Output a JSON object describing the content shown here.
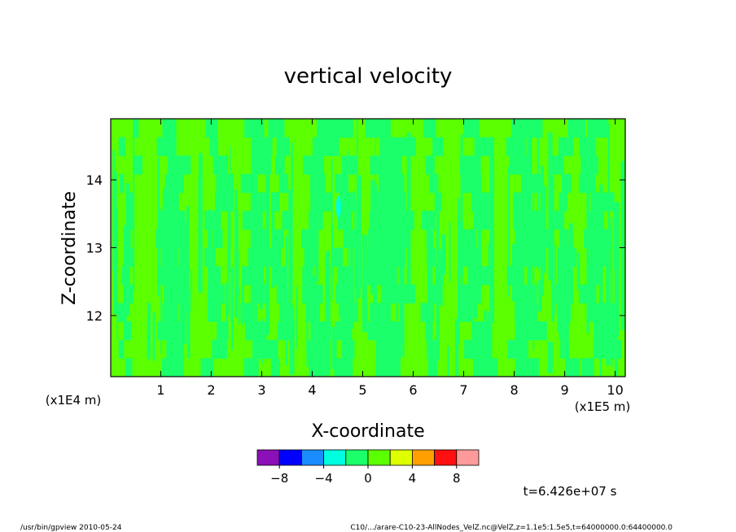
{
  "chart_data": {
    "type": "heatmap",
    "title": "vertical velocity",
    "xlabel": "X-coordinate",
    "ylabel": "Z-coordinate",
    "x_scale_label": "(x1E5 m)",
    "y_scale_label": "(x1E4 m)",
    "x_ticks": [
      1,
      2,
      3,
      4,
      5,
      6,
      7,
      8,
      9,
      10
    ],
    "y_ticks": [
      12,
      13,
      14
    ],
    "xlim": [
      0.01,
      10.2
    ],
    "ylim": [
      11.1,
      14.9
    ],
    "colorbar": {
      "colors": [
        "#8a10b8",
        "#0000ff",
        "#1a8cff",
        "#00ffe0",
        "#1aff6a",
        "#5cff00",
        "#ddff00",
        "#ffa000",
        "#ff1010",
        "#ff9a9a"
      ],
      "bounds": [
        -10,
        -8,
        -6,
        -4,
        -2,
        0,
        2,
        4,
        6,
        8,
        10
      ],
      "tick_values": [
        -8,
        -4,
        0,
        4,
        8
      ],
      "tick_labels": [
        "−8",
        "−4",
        "0",
        "4",
        "8"
      ]
    },
    "dominant_levels": {
      "green_band": "0 to 2",
      "mint_band": "-2 to 0",
      "cyan_spot": "-4 to -2 near x=4.5, z=13.6"
    },
    "time_label": "t=6.426e+07 s"
  },
  "footer": {
    "left": "/usr/bin/gpview   2010-05-24",
    "right": "C10/.../arare-C10-23-AllNodes_VelZ.nc@VelZ,z=1.1e5:1.5e5,t=64000000.0:64400000.0"
  }
}
